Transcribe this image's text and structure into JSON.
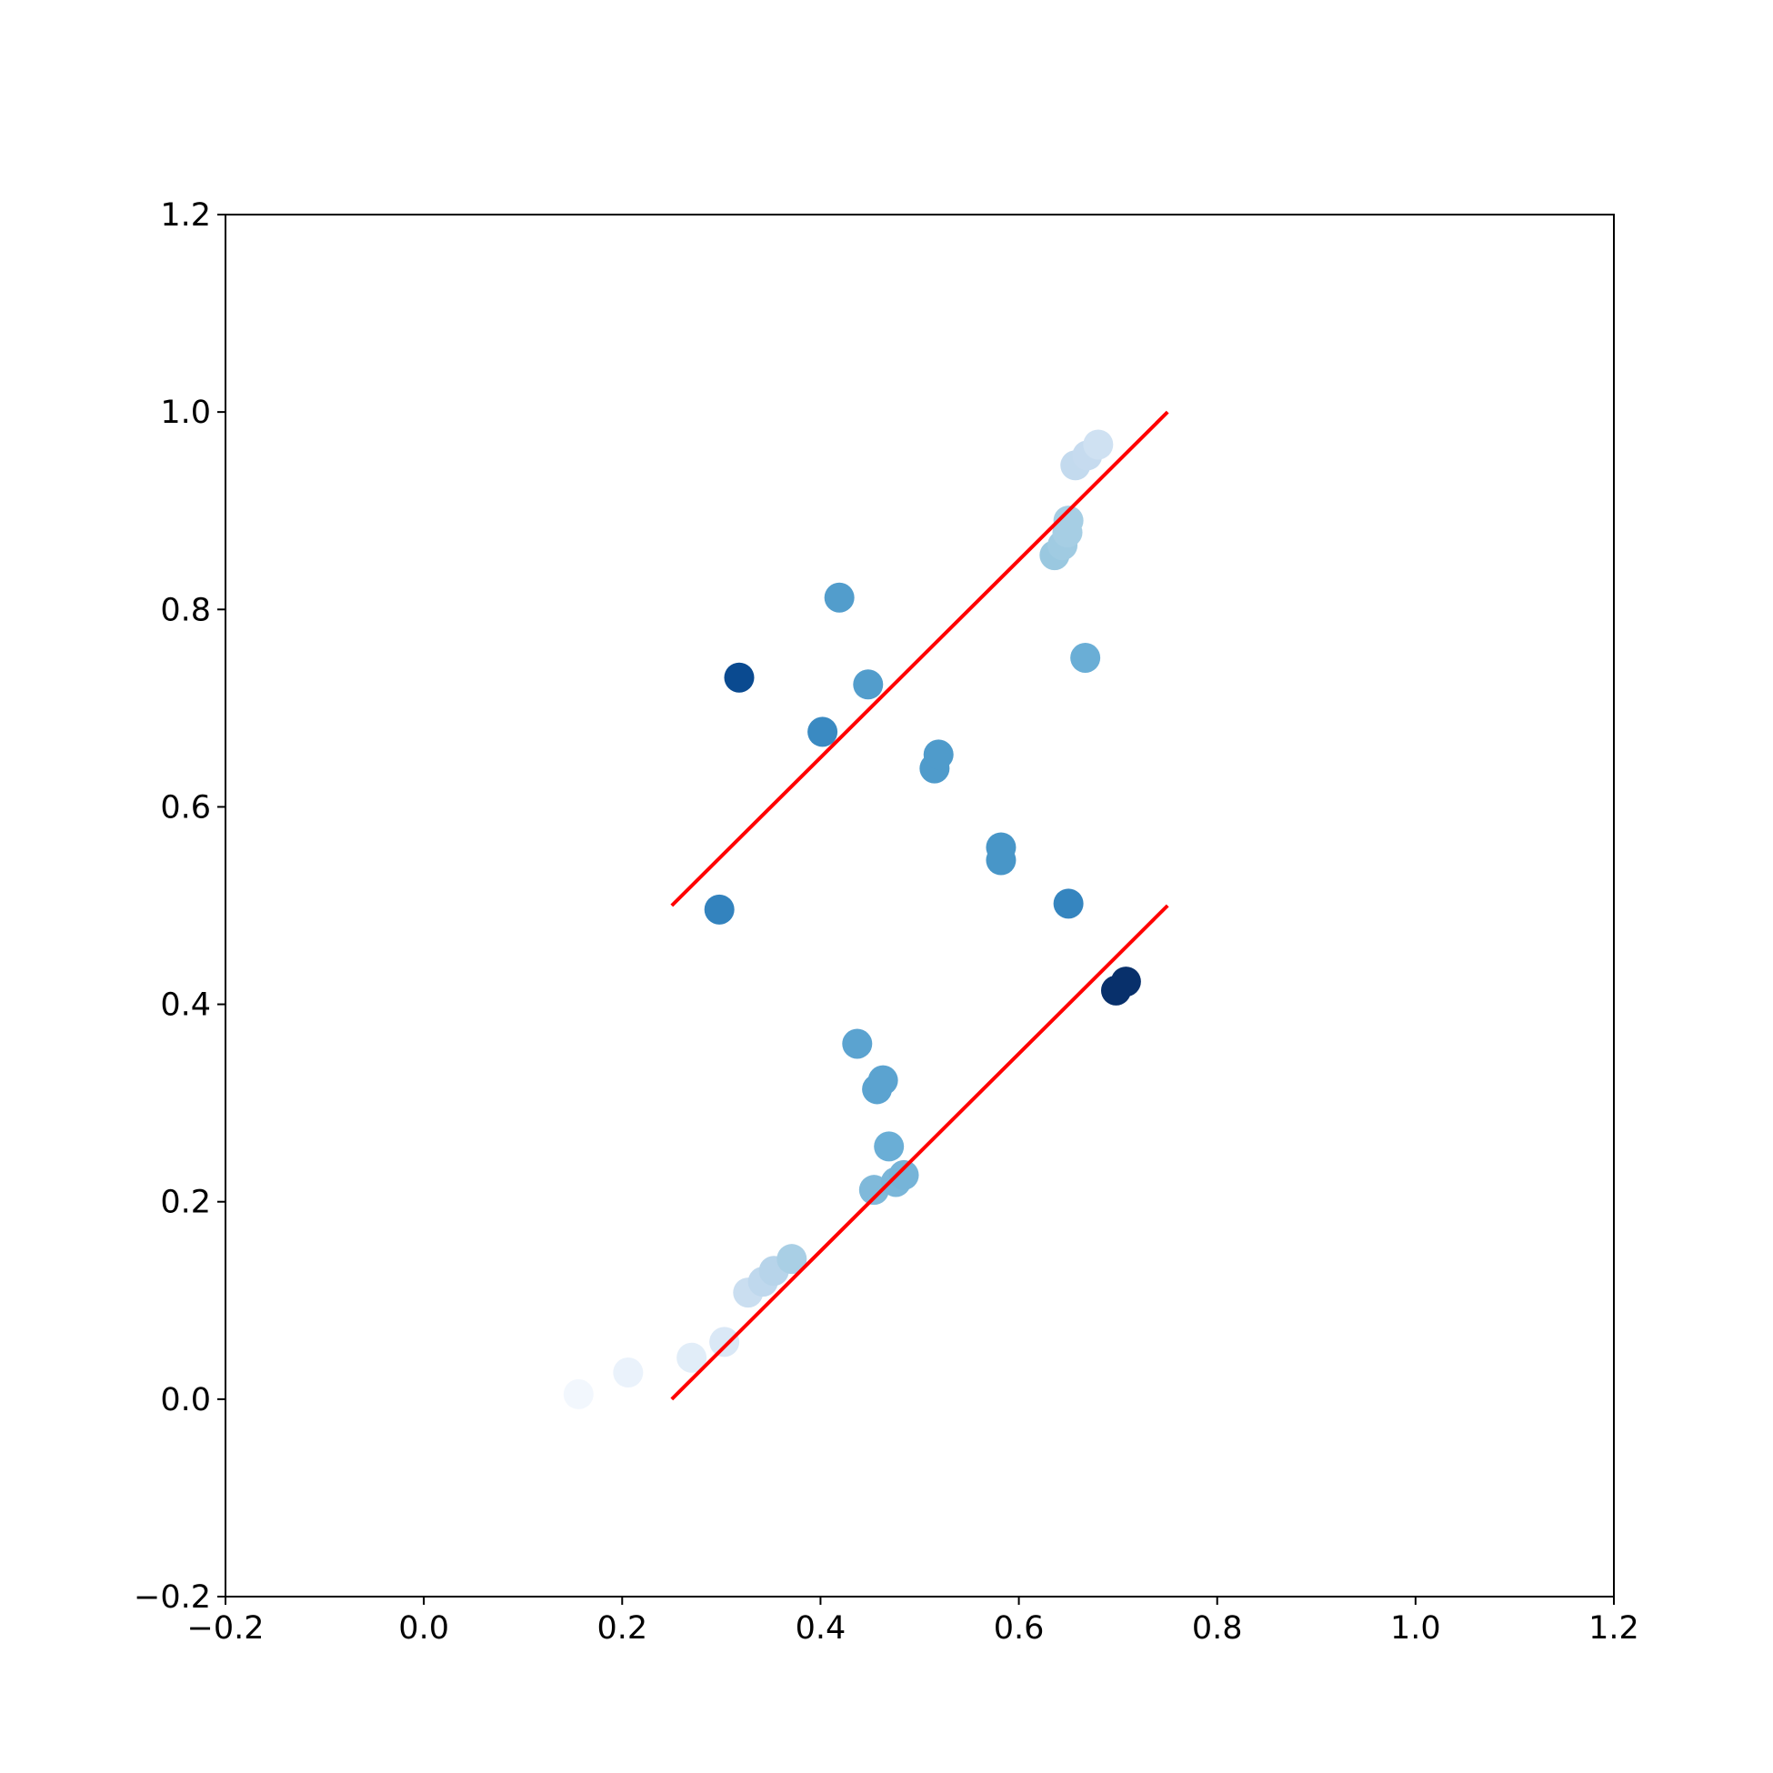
{
  "chart_data": {
    "type": "scatter",
    "x": [
      0.156,
      0.206,
      0.27,
      0.303,
      0.327,
      0.342,
      0.353,
      0.371,
      0.454,
      0.476,
      0.484,
      0.469,
      0.457,
      0.463,
      0.437,
      0.698,
      0.708,
      0.65,
      0.298,
      0.582,
      0.582,
      0.515,
      0.519,
      0.402,
      0.448,
      0.318,
      0.419,
      0.667,
      0.636,
      0.644,
      0.649,
      0.65,
      0.657,
      0.669,
      0.68
    ],
    "y": [
      0.005,
      0.027,
      0.042,
      0.058,
      0.108,
      0.119,
      0.13,
      0.142,
      0.212,
      0.22,
      0.227,
      0.256,
      0.314,
      0.323,
      0.36,
      0.414,
      0.423,
      0.502,
      0.496,
      0.546,
      0.559,
      0.639,
      0.653,
      0.676,
      0.724,
      0.731,
      0.812,
      0.751,
      0.855,
      0.865,
      0.878,
      0.89,
      0.946,
      0.956,
      0.967
    ],
    "colors": [
      "#f2f7fd",
      "#eaf2fb",
      "#e1edf8",
      "#dae8f6",
      "#cadef0",
      "#bfd8ed",
      "#b7d4ea",
      "#a9cfe5",
      "#7fb9da",
      "#7ab6d9",
      "#76b4d8",
      "#6aaed6",
      "#5ba3d0",
      "#5ba3d0",
      "#5ba3d0",
      "#08306b",
      "#08306b",
      "#3585bf",
      "#3383be",
      "#4896c8",
      "#4896c8",
      "#4f9bcb",
      "#4f9bcb",
      "#3a8ac2",
      "#529dcc",
      "#0a4a90",
      "#529dcc",
      "#6aaed6",
      "#9ac8e0",
      "#a0cbe2",
      "#a6cee4",
      "#a6cee4",
      "#c3daee",
      "#c6dbef",
      "#cfe1f2"
    ],
    "lines": [
      {
        "color": "#ff0000",
        "x": [
          0.25,
          0.75
        ],
        "y": [
          0.5,
          1.0
        ]
      },
      {
        "color": "#ff0000",
        "x": [
          0.25,
          0.75
        ],
        "y": [
          0.0,
          0.5
        ]
      }
    ],
    "xlim": [
      -0.2,
      1.2
    ],
    "ylim": [
      -0.2,
      1.2
    ],
    "xticks": [
      {
        "value": -0.2,
        "label": "−0.2"
      },
      {
        "value": 0.0,
        "label": "0.0"
      },
      0.2,
      0.4,
      0.6,
      0.8,
      {
        "value": 1.0,
        "label": "1.0"
      },
      1.2
    ],
    "yticks": [
      {
        "value": -0.2,
        "label": "−0.2"
      },
      {
        "value": 0.0,
        "label": "0.0"
      },
      0.2,
      0.4,
      0.6,
      0.8,
      {
        "value": 1.0,
        "label": "1.0"
      },
      1.2
    ]
  }
}
